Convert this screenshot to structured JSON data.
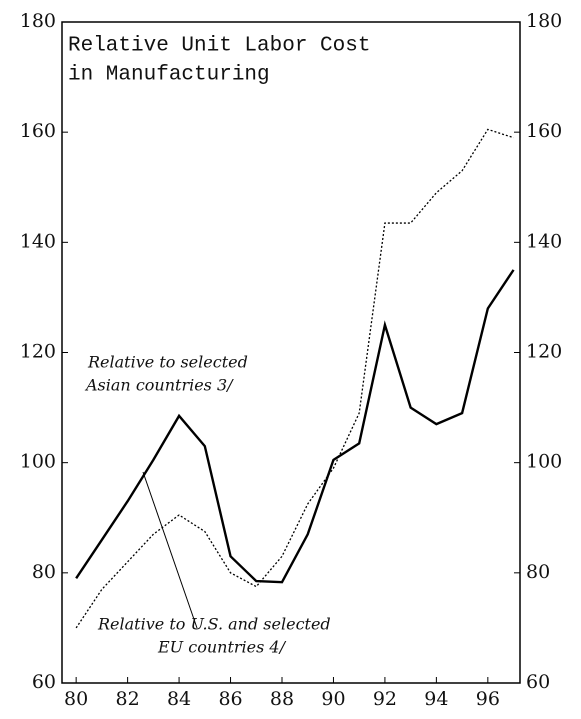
{
  "chart_data": {
    "type": "line",
    "title_lines": [
      "Relative Unit Labor Cost",
      "in Manufacturing"
    ],
    "annotations": [
      {
        "lines": [
          "Relative to selected",
          "Asian countries 3/"
        ]
      },
      {
        "lines": [
          "Relative to U.S. and selected",
          "EU countries 4/"
        ]
      }
    ],
    "x": [
      80,
      81,
      82,
      83,
      84,
      85,
      86,
      87,
      88,
      89,
      90,
      91,
      92,
      93,
      94,
      95,
      96,
      97
    ],
    "series": [
      {
        "color": "#000000",
        "style": "solid",
        "values": [
          79,
          86,
          93,
          100.5,
          108.5,
          103,
          83,
          78.5,
          78.3,
          87,
          100.5,
          103.5,
          125,
          110,
          107,
          109,
          128,
          135
        ]
      },
      {
        "color": "#000000",
        "style": "dotted",
        "values": [
          70,
          77,
          82,
          87,
          90.5,
          87.5,
          80,
          77.5,
          83,
          92.5,
          99,
          109,
          143.5,
          143.5,
          149,
          153,
          160.5,
          159
        ]
      }
    ],
    "xlim": [
      79.45,
      97.25
    ],
    "xticks": [
      80,
      82,
      84,
      86,
      88,
      90,
      92,
      94,
      96
    ],
    "ylim": [
      60,
      180
    ],
    "yticks": [
      60,
      80,
      100,
      120,
      140,
      160,
      180
    ],
    "y2lim": [
      60,
      180
    ],
    "y2ticks": [
      60,
      80,
      100,
      120,
      140,
      160,
      180
    ]
  }
}
